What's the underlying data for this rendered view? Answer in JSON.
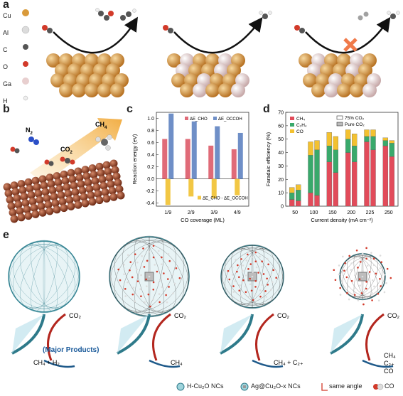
{
  "panels": {
    "a": "a",
    "b": "b",
    "c": "c",
    "d": "d",
    "e": "e"
  },
  "panel_a": {
    "legend": [
      {
        "label": "Cu",
        "color": "#d99a3a"
      },
      {
        "label": "Al",
        "color": "#dcdcdc"
      },
      {
        "label": "C",
        "color": "#555555"
      },
      {
        "label": "O",
        "color": "#d23a2a"
      },
      {
        "label": "Ga",
        "color": "#e8cfcf"
      },
      {
        "label": "H",
        "color": "#eeeeee"
      }
    ]
  },
  "panel_b": {
    "labels": {
      "n2": "N",
      "n2_sub": "2",
      "co2": "CO",
      "co2_sub": "2",
      "ch4": "CH",
      "ch4_sub": "4"
    }
  },
  "chart_data": [
    {
      "type": "bar",
      "panel": "c",
      "categories": [
        "1/9",
        "2/9",
        "3/9",
        "4/9"
      ],
      "series": [
        {
          "name": "ΔE_CHO",
          "color": "#e06b78",
          "values": [
            0.66,
            0.66,
            0.55,
            0.49
          ]
        },
        {
          "name": "ΔE_OCCOH",
          "color": "#6f8fc7",
          "values": [
            1.08,
            0.95,
            0.87,
            0.76
          ]
        },
        {
          "name": "ΔE_CHO - ΔE_OCCOH",
          "color": "#f2c744",
          "values": [
            -0.43,
            -0.29,
            -0.32,
            -0.27
          ]
        }
      ],
      "legend_top": [
        "ΔE_CHO",
        "ΔE_OCCOH"
      ],
      "legend_bottom": "ΔE_CHO - ΔE_OCCOH",
      "xlabel": "CO coverage (ML)",
      "ylabel": "Reaction energy (eV)",
      "ylim": [
        -0.45,
        1.1
      ],
      "yticks": [
        "1.0",
        "0.8",
        "0.6",
        "0.4",
        "0.2",
        "0.0",
        "-0.2",
        "-0.4"
      ]
    },
    {
      "type": "bar",
      "panel": "d",
      "categories": [
        "50",
        "100",
        "150",
        "200",
        "225",
        "250"
      ],
      "series": [
        {
          "name": "CH4",
          "color": "#e24b5a",
          "values_75": [
            5,
            10,
            33,
            40,
            48,
            45
          ],
          "values_pure": [
            4,
            8,
            25,
            33,
            42,
            37
          ]
        },
        {
          "name": "C2H4",
          "color": "#39a96b",
          "values_75": [
            5,
            28,
            12,
            10,
            4,
            4
          ],
          "values_pure": [
            8,
            34,
            17,
            12,
            10,
            10
          ]
        },
        {
          "name": "CO",
          "color": "#f3c130",
          "values_75": [
            4,
            10,
            10,
            7,
            5,
            2
          ],
          "values_pure": [
            4,
            7,
            10,
            9,
            5,
            2
          ]
        }
      ],
      "legend_left": [
        "CH₄",
        "C₂H₄",
        "CO"
      ],
      "legend_right": [
        "75% CO₂",
        "Pure CO₂"
      ],
      "xlabel": "Current density (mA cm⁻²)",
      "ylabel": "Faradaic efficiency (%)",
      "ylim": [
        0,
        70
      ],
      "yticks": [
        "70",
        "60",
        "50",
        "40",
        "30",
        "20",
        "10",
        "0"
      ]
    }
  ],
  "panel_e": {
    "top_labels": [
      "CO₂",
      "CO₂",
      "CO₂",
      "CO₂"
    ],
    "products": [
      "CH₄ + H₂",
      "CH₄",
      "CH₄ + C₂₊",
      "CH₄\nC₂₊\nCO"
    ],
    "major": "(Major Products)",
    "legend": [
      "H-Cu₂O NCs",
      "Ag@Cu₂O-x NCs",
      "same angle",
      "CO"
    ]
  }
}
